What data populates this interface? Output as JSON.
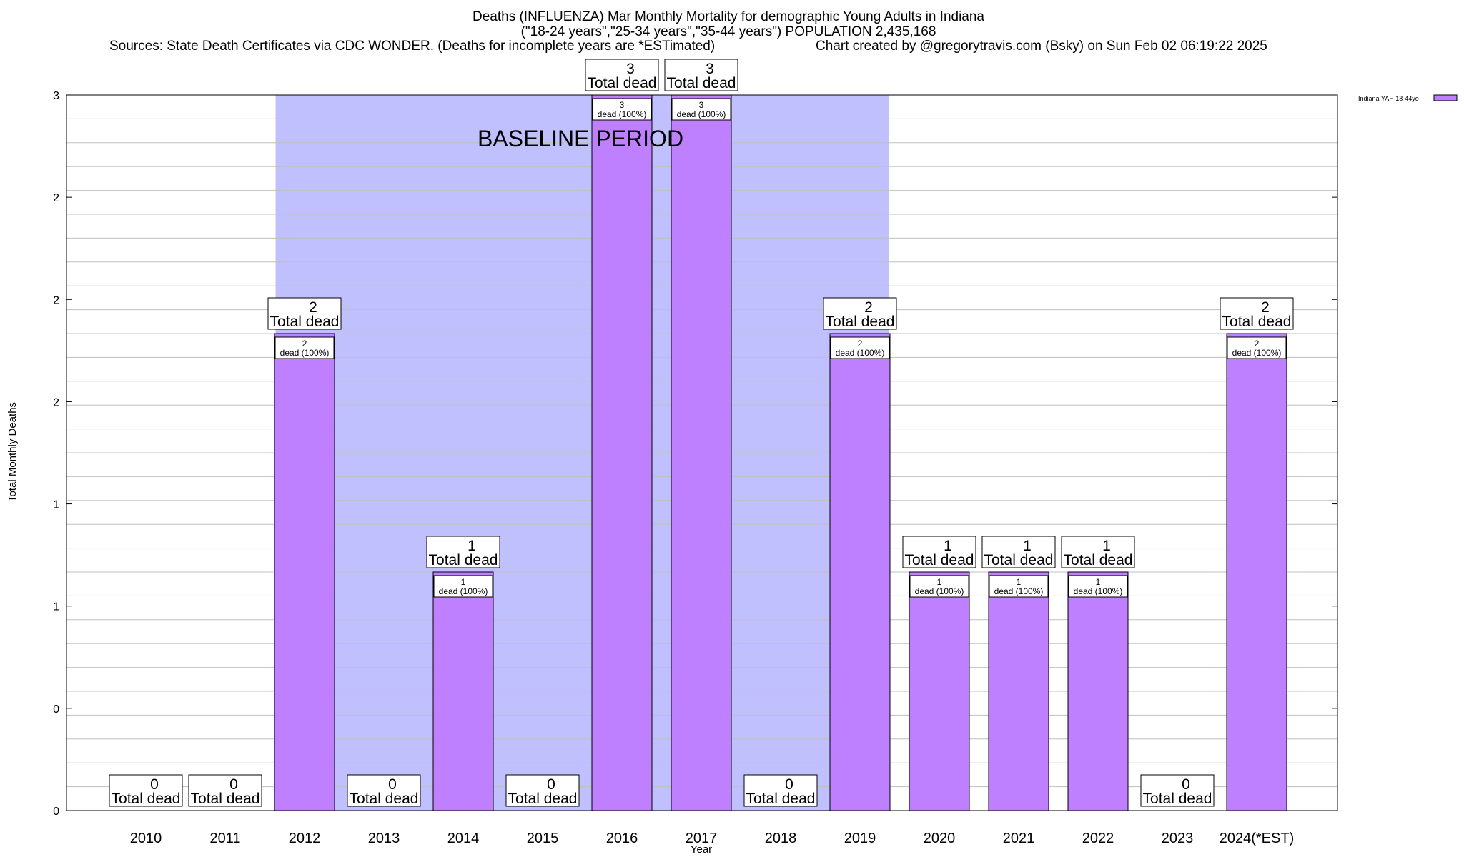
{
  "chart_data": {
    "type": "bar",
    "title": "Deaths (INFLUENZA) Mar Monthly Mortality for demographic Young Adults in Indiana",
    "subtitle": "(\"18-24 years\",\"25-34 years\",\"35-44 years\") POPULATION 2,435,168",
    "sources": "Sources: State Death Certificates via CDC WONDER. (Deaths for incomplete years are *ESTimated)",
    "credit": "Chart created by @gregorytravis.com (Bsky) on Sun Feb 02 06:19:22 2025",
    "xlabel": "Year",
    "ylabel": "Total Monthly Deaths",
    "categories": [
      "2010",
      "2011",
      "2012",
      "2013",
      "2014",
      "2015",
      "2016",
      "2017",
      "2018",
      "2019",
      "2020",
      "2021",
      "2022",
      "2023",
      "2024(*EST)"
    ],
    "series": [
      {
        "name": "Indiana YAH 18-44yo",
        "values": [
          0,
          0,
          2,
          0,
          1,
          0,
          3,
          3,
          0,
          2,
          1,
          1,
          1,
          0,
          2
        ]
      }
    ],
    "ylim": [
      0,
      3
    ],
    "y_tick_labels": [
      "0",
      "0",
      "1",
      "1",
      "2",
      "2",
      "2",
      "3"
    ],
    "grid": true,
    "legend_position": "top-right",
    "baseline_label": "BASELINE PERIOD",
    "baseline_range": [
      "2012",
      "2019"
    ],
    "total_label_suffix": "Total dead",
    "inner_label_template": "dead (100%)",
    "colors": {
      "bar": "#bf80ff",
      "baseline": "#c0c0ff",
      "grid": "#c0c0c0"
    }
  }
}
